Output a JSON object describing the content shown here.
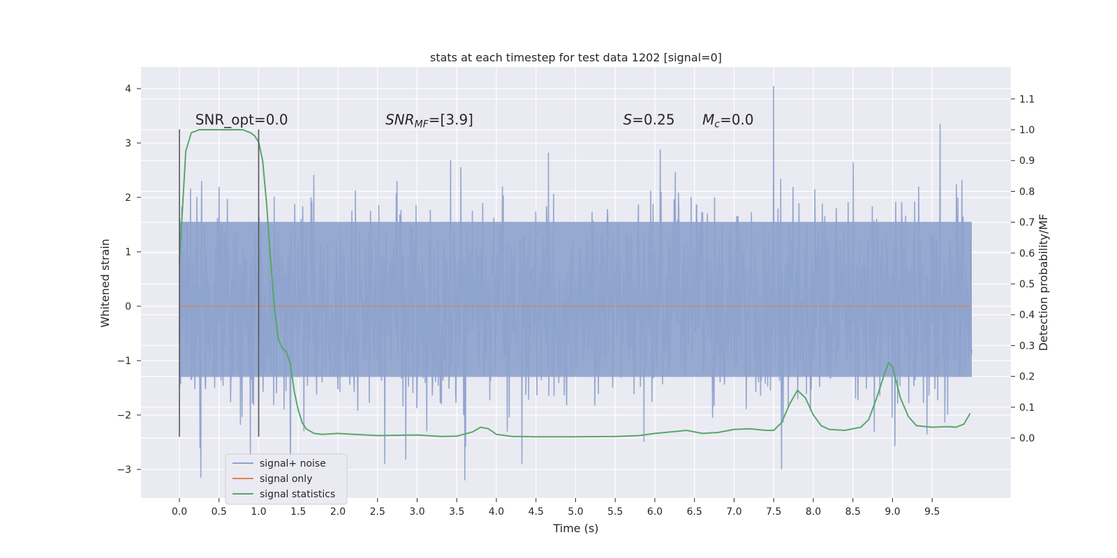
{
  "chart_data": {
    "type": "line",
    "title": "stats at each timestep for test data 1202 [signal=0]",
    "xlabel": "Time (s)",
    "ylabel": "Whitened strain",
    "y2label": "Detection probability/MF",
    "xlim": [
      -0.48,
      10.5
    ],
    "ylim": [
      -3.5,
      4.4
    ],
    "y2lim": [
      -0.2,
      1.2
    ],
    "x_ticks": [
      "0.0",
      "0.5",
      "1.0",
      "1.5",
      "2.0",
      "2.5",
      "3.0",
      "3.5",
      "4.0",
      "4.5",
      "5.0",
      "5.5",
      "6.0",
      "6.5",
      "7.0",
      "7.5",
      "8.0",
      "8.5",
      "9.0",
      "9.5"
    ],
    "y_ticks": [
      "−3",
      "−2",
      "−1",
      "0",
      "1",
      "2",
      "3",
      "4"
    ],
    "y2_ticks": [
      "0.0",
      "0.1",
      "0.2",
      "0.3",
      "0.4",
      "0.5",
      "0.6",
      "0.7",
      "0.8",
      "0.9",
      "1.0",
      "1.1"
    ],
    "grid": true,
    "annotations": [
      {
        "text": "SNR_opt=0.0",
        "x": 0.2,
        "y": 3.25
      },
      {
        "text": "SNR",
        "sub": "MF",
        "suffix": "=[3.9]",
        "italic_prefix": "SNR",
        "x": 2.6,
        "y": 3.25
      },
      {
        "text": "S",
        "suffix": "=0.25",
        "x": 5.6,
        "y": 3.25
      },
      {
        "text": "M",
        "sub": "c",
        "suffix": "=0.0",
        "x": 6.6,
        "y": 3.25
      }
    ],
    "vlines": [
      {
        "x": 0.0,
        "ymin": -2.4,
        "ymax": 3.25
      },
      {
        "x": 1.0,
        "ymin": -2.4,
        "ymax": 3.25
      }
    ],
    "series": [
      {
        "name": "signal+ noise",
        "color": "#8da2cc",
        "kind": "noise",
        "x_range": [
          0.0,
          10.0
        ],
        "approx_std": 0.85,
        "band": [
          -1.3,
          1.55
        ],
        "extremes": [
          {
            "x": 7.5,
            "y": 4.05
          },
          {
            "x": 9.6,
            "y": 3.35
          },
          {
            "x": 0.27,
            "y": -3.15
          },
          {
            "x": 3.6,
            "y": -3.2
          },
          {
            "x": 7.6,
            "y": -3.0
          }
        ]
      },
      {
        "name": "signal only",
        "color": "#dd8452",
        "axis": "left",
        "x": [
          0.0,
          10.0
        ],
        "y": [
          0.0,
          0.0
        ]
      },
      {
        "name": "signal statistics",
        "color": "#55a868",
        "axis": "right",
        "x": [
          0.0,
          0.08,
          0.15,
          0.25,
          0.4,
          0.6,
          0.8,
          0.9,
          0.95,
          1.0,
          1.05,
          1.1,
          1.15,
          1.2,
          1.25,
          1.3,
          1.35,
          1.4,
          1.45,
          1.5,
          1.55,
          1.6,
          1.7,
          1.8,
          2.0,
          2.2,
          2.5,
          3.0,
          3.3,
          3.5,
          3.7,
          3.8,
          3.9,
          4.0,
          4.2,
          4.5,
          5.0,
          5.5,
          5.8,
          6.0,
          6.2,
          6.4,
          6.6,
          6.8,
          7.0,
          7.2,
          7.4,
          7.5,
          7.6,
          7.7,
          7.8,
          7.9,
          8.0,
          8.1,
          8.2,
          8.4,
          8.6,
          8.7,
          8.8,
          8.9,
          8.95,
          9.0,
          9.1,
          9.2,
          9.3,
          9.5,
          9.7,
          9.8,
          9.9,
          9.98
        ],
        "y": [
          0.57,
          0.93,
          0.99,
          1.0,
          1.0,
          1.0,
          1.0,
          0.99,
          0.98,
          0.96,
          0.9,
          0.76,
          0.58,
          0.42,
          0.32,
          0.29,
          0.28,
          0.24,
          0.15,
          0.09,
          0.05,
          0.03,
          0.015,
          0.012,
          0.015,
          0.012,
          0.008,
          0.01,
          0.005,
          0.006,
          0.02,
          0.035,
          0.03,
          0.012,
          0.005,
          0.004,
          0.004,
          0.005,
          0.008,
          0.015,
          0.02,
          0.025,
          0.015,
          0.018,
          0.028,
          0.03,
          0.025,
          0.025,
          0.05,
          0.11,
          0.155,
          0.13,
          0.075,
          0.04,
          0.028,
          0.025,
          0.035,
          0.06,
          0.13,
          0.21,
          0.245,
          0.23,
          0.13,
          0.07,
          0.04,
          0.035,
          0.037,
          0.035,
          0.045,
          0.08
        ]
      }
    ],
    "legend": {
      "placement": "lower-left",
      "entries": [
        "signal+ noise",
        "signal only",
        "signal statistics"
      ]
    }
  }
}
